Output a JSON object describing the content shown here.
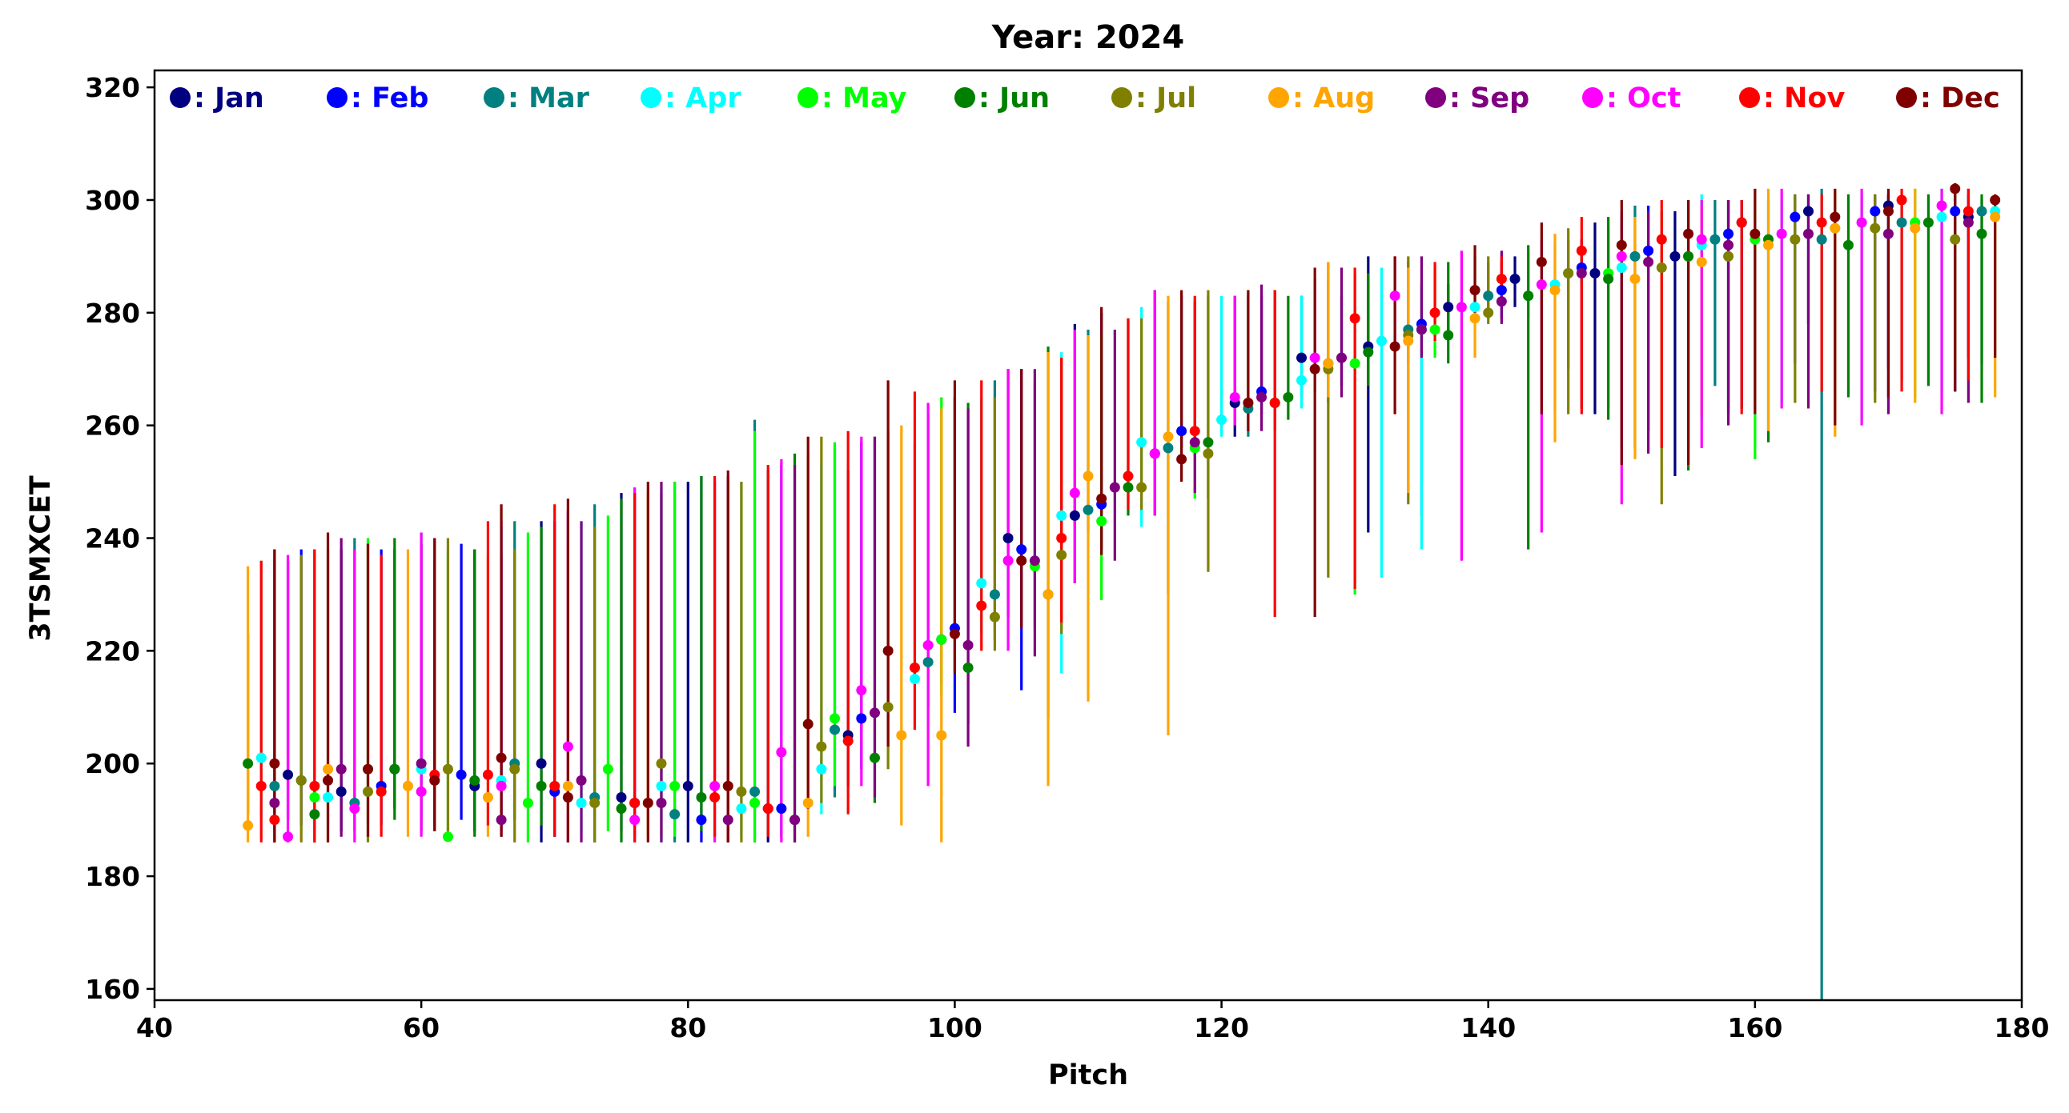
{
  "chart_data": {
    "type": "scatter",
    "title": "Year: 2024",
    "xlabel": "Pitch",
    "ylabel": "3TSMXCET",
    "xlim": [
      40,
      180
    ],
    "ylim": [
      158,
      323
    ],
    "xticks": [
      40,
      60,
      80,
      100,
      120,
      140,
      160,
      180
    ],
    "yticks": [
      160,
      180,
      200,
      220,
      240,
      260,
      280,
      300,
      320
    ],
    "grid": false,
    "legend_placement": "top, single row inside plot",
    "error_bars": true,
    "series": [
      {
        "name": ": Jan",
        "color": "#000080",
        "x": [
          50,
          54,
          58,
          64,
          69,
          75,
          80,
          86,
          92,
          99,
          104,
          109,
          115,
          121,
          126,
          131,
          137,
          142,
          148,
          154,
          159,
          164,
          170,
          176
        ],
        "y": [
          198,
          195,
          199,
          196,
          200,
          194,
          196,
          192,
          205,
          222,
          240,
          244,
          255,
          264,
          272,
          274,
          281,
          286,
          287,
          290,
          296,
          298,
          299,
          297
        ],
        "err_low": [
          190,
          188,
          192,
          188,
          186,
          188,
          186,
          186,
          196,
          214,
          226,
          232,
          244,
          258,
          265,
          241,
          276,
          281,
          262,
          251,
          263,
          278,
          270,
          272
        ],
        "err_high": [
          236,
          238,
          238,
          238,
          243,
          248,
          250,
          252,
          252,
          263,
          270,
          278,
          284,
          283,
          283,
          290,
          285,
          290,
          296,
          298,
          300,
          301,
          301,
          301
        ]
      },
      {
        "name": ": Feb",
        "color": "#0000ff",
        "x": [
          51,
          57,
          63,
          70,
          76,
          81,
          87,
          93,
          100,
          105,
          111,
          117,
          123,
          129,
          135,
          141,
          147,
          152,
          158,
          163,
          169,
          175
        ],
        "y": [
          197,
          196,
          198,
          195,
          193,
          190,
          192,
          208,
          224,
          238,
          246,
          259,
          266,
          272,
          278,
          284,
          288,
          291,
          294,
          297,
          298,
          298
        ],
        "err_low": [
          189,
          189,
          190,
          187,
          187,
          186,
          187,
          199,
          209,
          213,
          238,
          256,
          262,
          267,
          244,
          279,
          285,
          259,
          262,
          271,
          266,
          266
        ],
        "err_high": [
          238,
          238,
          239,
          243,
          248,
          251,
          253,
          257,
          265,
          270,
          280,
          283,
          283,
          283,
          285,
          289,
          293,
          299,
          300,
          301,
          301,
          301
        ]
      },
      {
        "name": ": Mar",
        "color": "#008080",
        "x": [
          49,
          55,
          61,
          67,
          73,
          79,
          85,
          91,
          98,
          103,
          110,
          116,
          122,
          128,
          134,
          140,
          146,
          151,
          157,
          165,
          171,
          177
        ],
        "y": [
          196,
          193,
          197,
          200,
          194,
          191,
          195,
          206,
          218,
          230,
          245,
          256,
          263,
          271,
          277,
          283,
          287,
          290,
          293,
          293,
          296,
          298
        ],
        "err_low": [
          188,
          188,
          189,
          190,
          186,
          186,
          186,
          194,
          210,
          222,
          241,
          230,
          258,
          264,
          271,
          279,
          270,
          256,
          267,
          158,
          268,
          271
        ],
        "err_high": [
          238,
          240,
          240,
          243,
          246,
          250,
          261,
          256,
          262,
          268,
          277,
          282,
          283,
          286,
          289,
          289,
          293,
          299,
          300,
          302,
          301,
          300
        ]
      },
      {
        "name": ": Apr",
        "color": "#00ffff",
        "x": [
          48,
          53,
          60,
          66,
          72,
          78,
          84,
          90,
          97,
          102,
          108,
          114,
          120,
          126,
          132,
          135,
          139,
          145,
          150,
          156,
          162,
          168,
          174,
          178
        ],
        "y": [
          201,
          194,
          199,
          197,
          193,
          196,
          192,
          199,
          215,
          232,
          244,
          257,
          261,
          268,
          275,
          277,
          281,
          285,
          288,
          292,
          294,
          296,
          297,
          298
        ],
        "err_low": [
          190,
          189,
          190,
          190,
          188,
          186,
          187,
          191,
          206,
          223,
          216,
          242,
          258,
          263,
          233,
          238,
          279,
          262,
          256,
          261,
          264,
          261,
          266,
          272
        ],
        "err_high": [
          236,
          238,
          241,
          242,
          243,
          249,
          250,
          253,
          257,
          265,
          273,
          281,
          283,
          283,
          288,
          286,
          290,
          292,
          297,
          301,
          300,
          301,
          302,
          300
        ]
      },
      {
        "name": ": May",
        "color": "#00ff00",
        "x": [
          52,
          56,
          62,
          68,
          74,
          79,
          85,
          91,
          99,
          106,
          111,
          118,
          124,
          130,
          136,
          143,
          149,
          155,
          160,
          166,
          172
        ],
        "y": [
          194,
          199,
          187,
          193,
          199,
          196,
          193,
          208,
          222,
          235,
          243,
          256,
          264,
          271,
          277,
          283,
          287,
          290,
          293,
          295,
          296
        ],
        "err_low": [
          186,
          189,
          187,
          186,
          188,
          187,
          186,
          196,
          212,
          224,
          229,
          247,
          259,
          230,
          272,
          279,
          263,
          256,
          254,
          265,
          265
        ],
        "err_high": [
          238,
          240,
          238,
          241,
          244,
          250,
          259,
          257,
          265,
          268,
          276,
          282,
          284,
          287,
          288,
          291,
          295,
          299,
          300,
          301,
          302
        ]
      },
      {
        "name": ": Jun",
        "color": "#008000",
        "x": [
          47,
          52,
          58,
          64,
          69,
          75,
          81,
          88,
          94,
          101,
          107,
          113,
          119,
          125,
          131,
          137,
          143,
          149,
          155,
          161,
          167,
          173,
          177
        ],
        "y": [
          200,
          191,
          199,
          197,
          196,
          192,
          194,
          190,
          201,
          217,
          230,
          249,
          257,
          265,
          273,
          276,
          283,
          286,
          290,
          293,
          292,
          296,
          294
        ],
        "err_low": [
          191,
          186,
          190,
          187,
          189,
          186,
          188,
          186,
          193,
          207,
          208,
          244,
          247,
          261,
          267,
          271,
          238,
          261,
          252,
          257,
          265,
          267,
          264
        ],
        "err_high": [
          223,
          238,
          240,
          238,
          242,
          247,
          251,
          255,
          258,
          264,
          274,
          279,
          283,
          283,
          287,
          289,
          292,
          297,
          300,
          300,
          301,
          301,
          301
        ]
      },
      {
        "name": ": Jul",
        "color": "#808000",
        "x": [
          51,
          56,
          62,
          67,
          73,
          78,
          84,
          90,
          95,
          103,
          108,
          114,
          119,
          124,
          128,
          134,
          140,
          146,
          153,
          158,
          163,
          169,
          175
        ],
        "y": [
          197,
          195,
          199,
          199,
          193,
          200,
          195,
          203,
          210,
          226,
          237,
          249,
          255,
          264,
          270,
          276,
          280,
          287,
          288,
          290,
          293,
          295,
          293
        ],
        "err_low": [
          186,
          186,
          188,
          186,
          186,
          187,
          186,
          193,
          199,
          220,
          223,
          245,
          234,
          259,
          233,
          246,
          278,
          262,
          246,
          263,
          264,
          264,
          270
        ],
        "err_high": [
          237,
          239,
          240,
          238,
          242,
          248,
          250,
          258,
          259,
          265,
          272,
          279,
          284,
          284,
          289,
          290,
          290,
          295,
          298,
          300,
          301,
          301,
          302
        ]
      },
      {
        "name": ": Aug",
        "color": "#ffa500",
        "x": [
          47,
          53,
          59,
          65,
          71,
          77,
          83,
          89,
          96,
          99,
          107,
          110,
          116,
          122,
          128,
          134,
          139,
          145,
          151,
          156,
          161,
          166,
          172,
          178
        ],
        "y": [
          189,
          199,
          196,
          194,
          196,
          193,
          196,
          193,
          205,
          205,
          230,
          251,
          258,
          264,
          271,
          275,
          279,
          284,
          286,
          289,
          292,
          295,
          295,
          297
        ],
        "err_low": [
          186,
          186,
          187,
          187,
          186,
          187,
          186,
          187,
          189,
          186,
          196,
          211,
          205,
          260,
          265,
          248,
          272,
          257,
          254,
          262,
          259,
          258,
          264,
          265
        ],
        "err_high": [
          235,
          238,
          238,
          237,
          240,
          248,
          250,
          255,
          260,
          263,
          273,
          276,
          283,
          284,
          289,
          288,
          290,
          294,
          297,
          299,
          302,
          302,
          302,
          301
        ]
      },
      {
        "name": ": Sep",
        "color": "#800080",
        "x": [
          49,
          54,
          60,
          66,
          72,
          78,
          83,
          88,
          94,
          101,
          106,
          112,
          118,
          123,
          129,
          135,
          141,
          147,
          152,
          158,
          164,
          170,
          176
        ],
        "y": [
          193,
          199,
          200,
          190,
          197,
          193,
          190,
          190,
          209,
          221,
          236,
          249,
          257,
          265,
          272,
          277,
          282,
          287,
          289,
          292,
          294,
          294,
          296
        ],
        "err_low": [
          186,
          187,
          188,
          187,
          186,
          186,
          186,
          186,
          194,
          203,
          219,
          236,
          248,
          259,
          265,
          272,
          278,
          263,
          255,
          260,
          263,
          262,
          264
        ],
        "err_high": [
          236,
          240,
          239,
          237,
          243,
          250,
          251,
          253,
          258,
          263,
          270,
          277,
          282,
          285,
          288,
          290,
          291,
          293,
          298,
          300,
          301,
          301,
          302
        ]
      },
      {
        "name": ": Oct",
        "color": "#ff00ff",
        "x": [
          50,
          55,
          60,
          66,
          71,
          76,
          82,
          87,
          93,
          98,
          104,
          109,
          115,
          121,
          127,
          133,
          138,
          144,
          150,
          156,
          162,
          168,
          174
        ],
        "y": [
          187,
          192,
          195,
          196,
          203,
          190,
          196,
          202,
          213,
          221,
          236,
          248,
          255,
          265,
          272,
          283,
          281,
          285,
          290,
          293,
          294,
          296,
          299
        ],
        "err_low": [
          186,
          186,
          187,
          188,
          186,
          186,
          186,
          186,
          196,
          196,
          220,
          232,
          244,
          260,
          266,
          273,
          236,
          241,
          246,
          256,
          263,
          260,
          262
        ],
        "err_high": [
          237,
          238,
          241,
          243,
          245,
          249,
          250,
          254,
          258,
          264,
          270,
          277,
          284,
          283,
          286,
          290,
          291,
          293,
          298,
          300,
          302,
          302,
          302
        ]
      },
      {
        "name": ": Nov",
        "color": "#ff0000",
        "x": [
          48,
          49,
          52,
          57,
          61,
          65,
          70,
          76,
          82,
          86,
          92,
          97,
          102,
          108,
          113,
          118,
          124,
          130,
          136,
          141,
          147,
          153,
          159,
          165,
          171,
          176
        ],
        "y": [
          196,
          190,
          196,
          195,
          198,
          198,
          196,
          193,
          194,
          192,
          204,
          217,
          228,
          240,
          251,
          259,
          264,
          279,
          280,
          286,
          291,
          293,
          296,
          296,
          300,
          298
        ],
        "err_low": [
          186,
          186,
          186,
          187,
          188,
          189,
          187,
          186,
          187,
          187,
          191,
          206,
          220,
          225,
          245,
          257,
          226,
          231,
          275,
          283,
          262,
          256,
          262,
          266,
          266,
          268
        ],
        "err_high": [
          236,
          238,
          238,
          237,
          236,
          243,
          246,
          248,
          251,
          253,
          259,
          266,
          268,
          272,
          279,
          283,
          284,
          288,
          289,
          290,
          297,
          300,
          300,
          301,
          302,
          302
        ]
      },
      {
        "name": ": Dec",
        "color": "#800000",
        "x": [
          49,
          53,
          56,
          61,
          66,
          71,
          77,
          83,
          89,
          95,
          100,
          105,
          111,
          117,
          122,
          127,
          133,
          139,
          144,
          150,
          155,
          160,
          166,
          170,
          175,
          178
        ],
        "y": [
          200,
          197,
          199,
          197,
          201,
          194,
          193,
          196,
          207,
          220,
          223,
          236,
          247,
          254,
          264,
          270,
          274,
          284,
          289,
          292,
          294,
          294,
          297,
          298,
          302,
          300
        ],
        "err_low": [
          186,
          186,
          187,
          188,
          187,
          186,
          186,
          186,
          192,
          203,
          216,
          224,
          237,
          250,
          259,
          226,
          262,
          280,
          262,
          253,
          253,
          262,
          260,
          265,
          266,
          272
        ],
        "err_high": [
          238,
          241,
          239,
          240,
          246,
          247,
          250,
          252,
          258,
          268,
          268,
          270,
          281,
          284,
          284,
          288,
          290,
          292,
          296,
          300,
          300,
          302,
          302,
          302,
          303,
          301
        ]
      }
    ]
  }
}
